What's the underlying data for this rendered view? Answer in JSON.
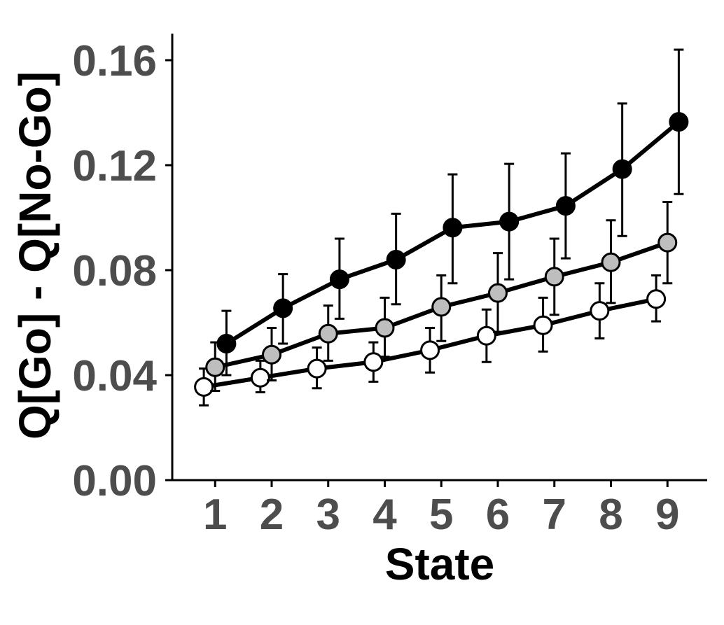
{
  "chart_data": {
    "type": "line",
    "title": "",
    "xlabel": "State",
    "ylabel": "Q[Go] - Q[No-Go]",
    "x": [
      1,
      2,
      3,
      4,
      5,
      6,
      7,
      8,
      9
    ],
    "xticks": [
      "1",
      "2",
      "3",
      "4",
      "5",
      "6",
      "7",
      "8",
      "9"
    ],
    "yticks": [
      "0.00",
      "0.04",
      "0.08",
      "0.12",
      "0.16"
    ],
    "ylim": [
      0,
      0.17
    ],
    "grid": false,
    "legend": "none",
    "series": [
      {
        "fill": "#ffffff",
        "dodge": -0.2,
        "values": [
          0.0355,
          0.039,
          0.0425,
          0.045,
          0.0495,
          0.055,
          0.059,
          0.0645,
          0.069
        ],
        "err_low": [
          0.0285,
          0.0335,
          0.035,
          0.0375,
          0.041,
          0.045,
          0.049,
          0.054,
          0.0605
        ],
        "err_high": [
          0.0425,
          0.0455,
          0.0505,
          0.0525,
          0.058,
          0.065,
          0.0695,
          0.075,
          0.078
        ]
      },
      {
        "fill": "#bebebe",
        "dodge": 0.0,
        "values": [
          0.043,
          0.0478,
          0.0558,
          0.058,
          0.066,
          0.0713,
          0.0775,
          0.083,
          0.0905
        ],
        "err_low": [
          0.034,
          0.038,
          0.0455,
          0.047,
          0.053,
          0.0565,
          0.063,
          0.0675,
          0.075
        ],
        "err_high": [
          0.0525,
          0.058,
          0.0665,
          0.0695,
          0.078,
          0.0865,
          0.092,
          0.099,
          0.106
        ]
      },
      {
        "fill": "#000000",
        "dodge": 0.2,
        "values": [
          0.052,
          0.0655,
          0.0765,
          0.084,
          0.0962,
          0.0985,
          0.1045,
          0.1185,
          0.1365
        ],
        "err_low": [
          0.04,
          0.052,
          0.0615,
          0.067,
          0.075,
          0.0765,
          0.0845,
          0.093,
          0.109
        ],
        "err_high": [
          0.0645,
          0.0785,
          0.092,
          0.1015,
          0.1165,
          0.1205,
          0.1245,
          0.1435,
          0.164
        ]
      }
    ]
  }
}
